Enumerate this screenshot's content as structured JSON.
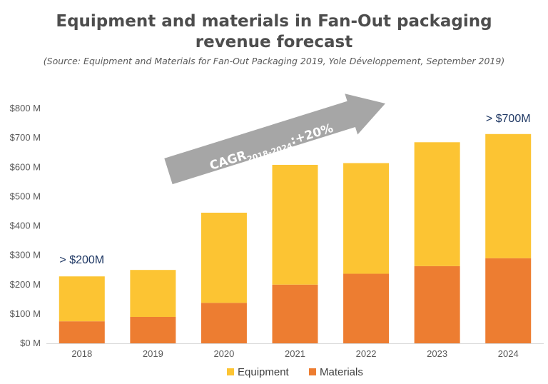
{
  "chart_data": {
    "type": "bar",
    "stacked": true,
    "title": "Equipment and materials in Fan-Out packaging revenue forecast",
    "title_lines": [
      "Equipment and materials in Fan-Out packaging",
      "revenue forecast"
    ],
    "subtitle": "(Source: Equipment and Materials for Fan-Out Packaging 2019, Yole Développement, September 2019)",
    "categories": [
      "2018",
      "2019",
      "2020",
      "2021",
      "2022",
      "2023",
      "2024"
    ],
    "series": [
      {
        "name": "Materials",
        "color": "#ed7d31",
        "values": [
          75,
          90,
          138,
          200,
          237,
          263,
          290
        ]
      },
      {
        "name": "Equipment",
        "color": "#fcc433",
        "values": [
          153,
          160,
          307,
          408,
          377,
          422,
          423
        ]
      }
    ],
    "y_ticks": [
      "$0 M",
      "$100 M",
      "$200 M",
      "$300 M",
      "$400 M",
      "$500 M",
      "$600 M",
      "$700 M",
      "$800 M"
    ],
    "ylim": [
      0,
      800
    ],
    "xlabel": "",
    "ylabel": "",
    "grid": false,
    "legend": [
      "Equipment",
      "Materials"
    ],
    "legend_position": "bottom",
    "annotations": {
      "start_label": "> $200M",
      "end_label": "> $700M",
      "cagr_prefix": "CAGR",
      "cagr_subscript": "2018-2024",
      "cagr_suffix": ":+20%",
      "arrow_color": "#a6a6a6"
    }
  }
}
